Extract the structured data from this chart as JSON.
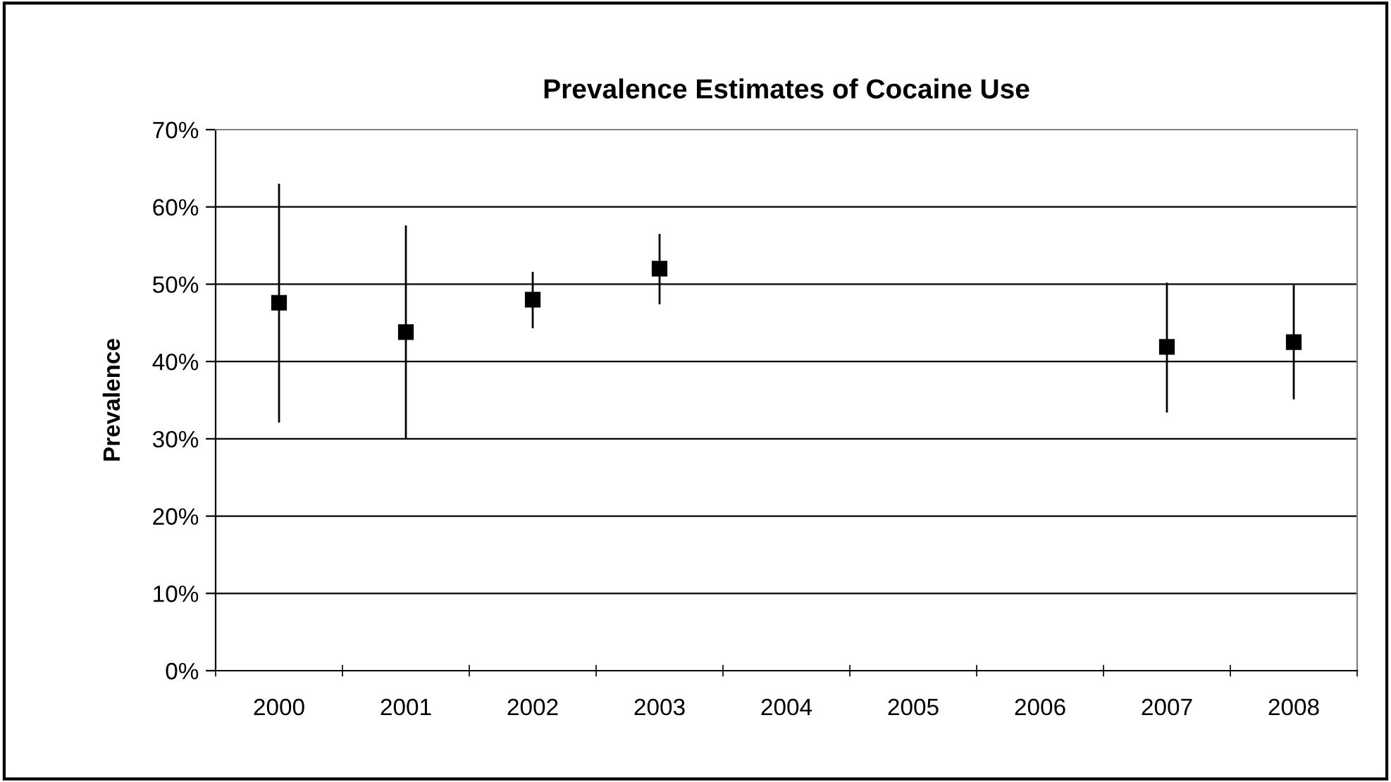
{
  "chart_data": {
    "type": "scatter",
    "title": "Prevalence Estimates of Cocaine Use",
    "ylabel": "Prevalence",
    "categories": [
      "2000",
      "2001",
      "2002",
      "2003",
      "2004",
      "2005",
      "2006",
      "2007",
      "2008"
    ],
    "values": [
      47.6,
      43.8,
      48.0,
      52.0,
      null,
      null,
      null,
      41.9,
      42.5
    ],
    "errors": [
      [
        32.1,
        63.0
      ],
      [
        29.9,
        57.6
      ],
      [
        44.3,
        51.6
      ],
      [
        47.4,
        56.5
      ],
      null,
      null,
      null,
      [
        33.4,
        50.2
      ],
      [
        35.1,
        49.9
      ]
    ],
    "color": "#000000",
    "marker": "square",
    "ylim": [
      0,
      70
    ],
    "yticks": [
      {
        "value": 0,
        "label": "0%"
      },
      {
        "value": 10,
        "label": "10%"
      },
      {
        "value": 20,
        "label": "20%"
      },
      {
        "value": 30,
        "label": "30%"
      },
      {
        "value": 40,
        "label": "40%"
      },
      {
        "value": 50,
        "label": "50%"
      },
      {
        "value": 60,
        "label": "60%"
      },
      {
        "value": 70,
        "label": "70%"
      }
    ],
    "grid": "y",
    "legend": false
  }
}
